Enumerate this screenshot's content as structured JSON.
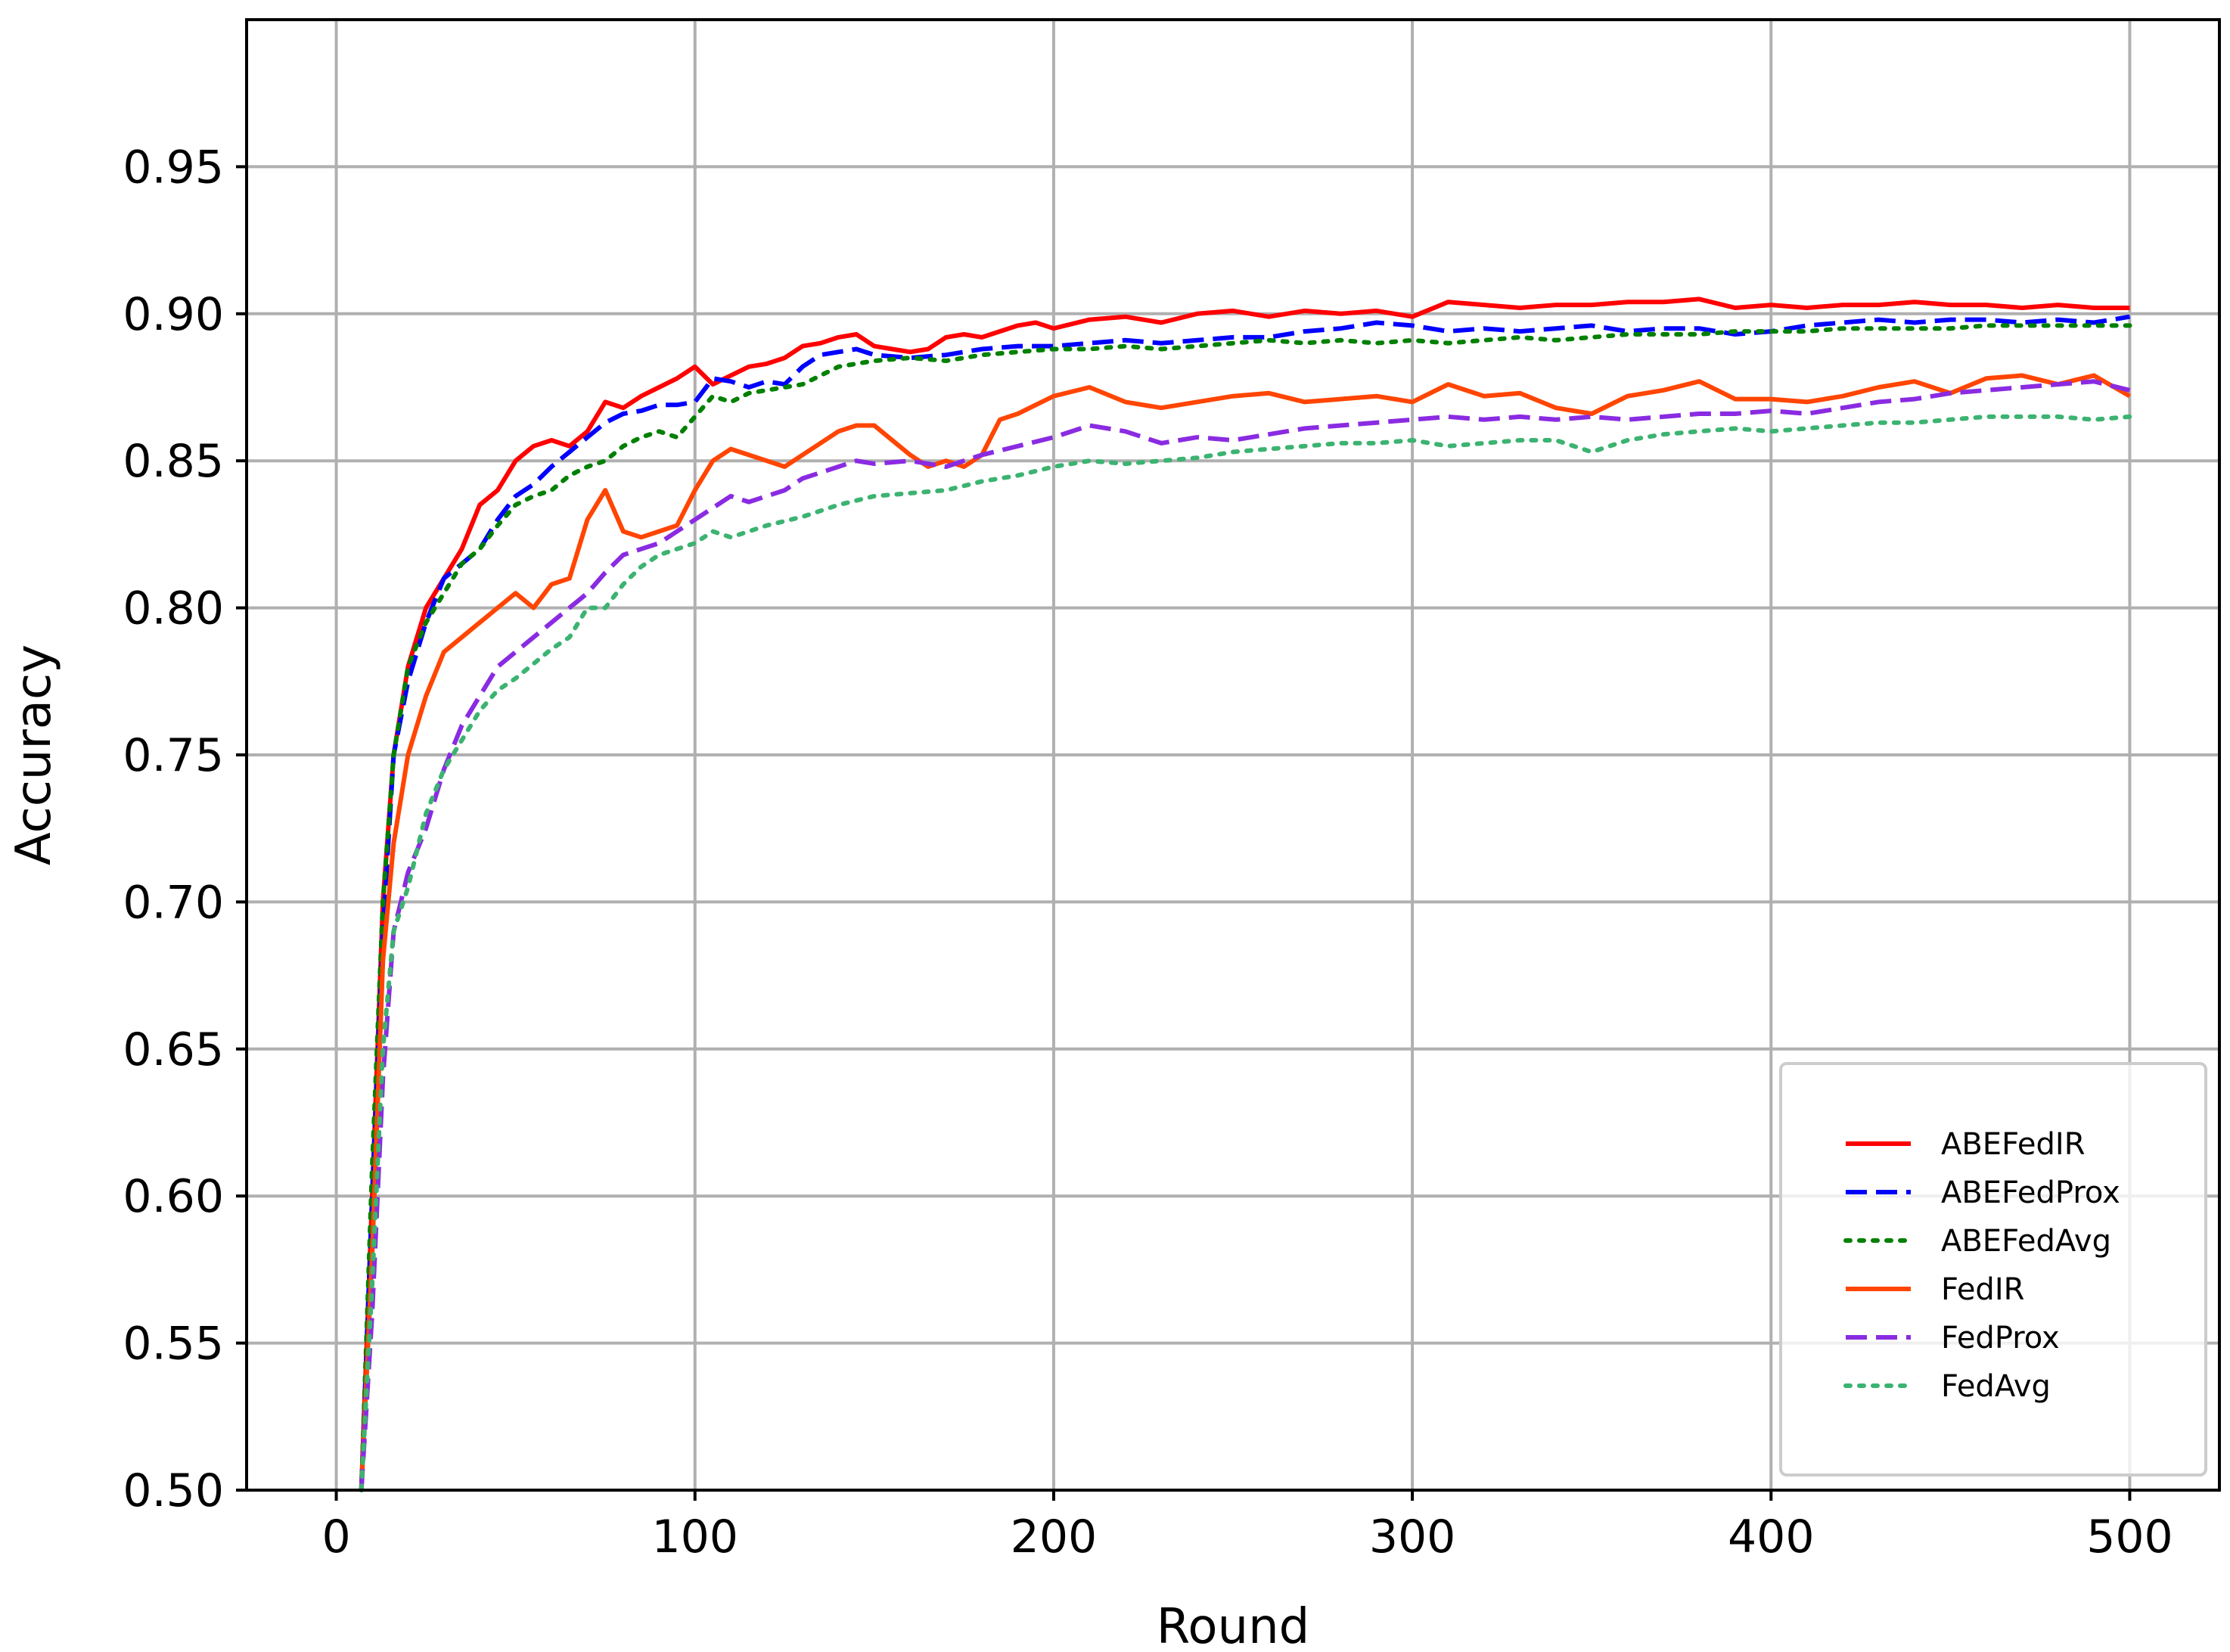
{
  "chart_data": {
    "type": "line",
    "xlabel": "Round",
    "ylabel": "Accuracy",
    "xlim": [
      -25,
      525
    ],
    "ylim": [
      0.5,
      1.0
    ],
    "xticks": [
      0,
      100,
      200,
      300,
      400,
      500
    ],
    "yticks": [
      0.5,
      0.55,
      0.6,
      0.65,
      0.7,
      0.75,
      0.8,
      0.85,
      0.9,
      0.95
    ],
    "grid": true,
    "legend_position": "lower right",
    "series": [
      {
        "name": "ABEFedIR",
        "color": "#ff0000",
        "style": "solid",
        "x": [
          7,
          10,
          13,
          16,
          20,
          25,
          30,
          35,
          40,
          45,
          50,
          55,
          60,
          65,
          70,
          75,
          80,
          85,
          90,
          95,
          100,
          105,
          110,
          115,
          120,
          125,
          130,
          135,
          140,
          145,
          150,
          155,
          160,
          165,
          170,
          175,
          180,
          185,
          190,
          195,
          200,
          210,
          220,
          230,
          240,
          250,
          260,
          270,
          280,
          290,
          300,
          310,
          320,
          330,
          340,
          350,
          360,
          370,
          380,
          390,
          400,
          410,
          420,
          430,
          440,
          450,
          460,
          470,
          480,
          490,
          500
        ],
        "y": [
          0.5,
          0.6,
          0.7,
          0.75,
          0.78,
          0.8,
          0.81,
          0.82,
          0.835,
          0.84,
          0.85,
          0.855,
          0.857,
          0.855,
          0.86,
          0.87,
          0.868,
          0.872,
          0.875,
          0.878,
          0.882,
          0.876,
          0.879,
          0.882,
          0.883,
          0.885,
          0.889,
          0.89,
          0.892,
          0.893,
          0.889,
          0.888,
          0.887,
          0.888,
          0.892,
          0.893,
          0.892,
          0.894,
          0.896,
          0.897,
          0.895,
          0.898,
          0.899,
          0.897,
          0.9,
          0.901,
          0.899,
          0.901,
          0.9,
          0.901,
          0.899,
          0.904,
          0.903,
          0.902,
          0.903,
          0.903,
          0.904,
          0.904,
          0.905,
          0.902,
          0.903,
          0.902,
          0.903,
          0.903,
          0.904,
          0.903,
          0.903,
          0.902,
          0.903,
          0.902,
          0.902
        ]
      },
      {
        "name": "ABEFedProx",
        "color": "#0000ff",
        "style": "dashed",
        "x": [
          7,
          10,
          13,
          16,
          20,
          25,
          30,
          35,
          40,
          45,
          50,
          55,
          60,
          65,
          70,
          75,
          80,
          85,
          90,
          95,
          100,
          105,
          110,
          115,
          120,
          125,
          130,
          135,
          140,
          145,
          150,
          160,
          170,
          180,
          190,
          200,
          210,
          220,
          230,
          240,
          250,
          260,
          270,
          280,
          290,
          300,
          310,
          320,
          330,
          340,
          350,
          360,
          370,
          380,
          390,
          400,
          410,
          420,
          430,
          440,
          450,
          460,
          470,
          480,
          490,
          500
        ],
        "y": [
          0.5,
          0.6,
          0.69,
          0.75,
          0.775,
          0.795,
          0.81,
          0.815,
          0.82,
          0.83,
          0.838,
          0.842,
          0.848,
          0.853,
          0.858,
          0.863,
          0.866,
          0.867,
          0.869,
          0.869,
          0.87,
          0.878,
          0.877,
          0.875,
          0.877,
          0.876,
          0.882,
          0.886,
          0.887,
          0.888,
          0.886,
          0.885,
          0.886,
          0.888,
          0.889,
          0.889,
          0.89,
          0.891,
          0.89,
          0.891,
          0.892,
          0.892,
          0.894,
          0.895,
          0.897,
          0.896,
          0.894,
          0.895,
          0.894,
          0.895,
          0.896,
          0.894,
          0.895,
          0.895,
          0.893,
          0.894,
          0.896,
          0.897,
          0.898,
          0.897,
          0.898,
          0.898,
          0.897,
          0.898,
          0.897,
          0.899
        ]
      },
      {
        "name": "ABEFedAvg",
        "color": "#008000",
        "style": "dotted",
        "x": [
          7,
          10,
          13,
          16,
          20,
          25,
          30,
          35,
          40,
          45,
          50,
          55,
          60,
          65,
          70,
          75,
          80,
          85,
          90,
          95,
          100,
          105,
          110,
          115,
          120,
          130,
          140,
          150,
          160,
          170,
          180,
          190,
          200,
          210,
          220,
          230,
          240,
          250,
          260,
          270,
          280,
          290,
          300,
          310,
          320,
          330,
          340,
          350,
          360,
          370,
          380,
          390,
          400,
          410,
          420,
          430,
          440,
          450,
          460,
          470,
          480,
          490,
          500
        ],
        "y": [
          0.5,
          0.61,
          0.7,
          0.75,
          0.78,
          0.795,
          0.805,
          0.815,
          0.82,
          0.828,
          0.835,
          0.838,
          0.84,
          0.845,
          0.848,
          0.85,
          0.855,
          0.858,
          0.86,
          0.858,
          0.865,
          0.872,
          0.87,
          0.873,
          0.874,
          0.876,
          0.882,
          0.884,
          0.885,
          0.884,
          0.886,
          0.887,
          0.888,
          0.888,
          0.889,
          0.888,
          0.889,
          0.89,
          0.891,
          0.89,
          0.891,
          0.89,
          0.891,
          0.89,
          0.891,
          0.892,
          0.891,
          0.892,
          0.893,
          0.893,
          0.893,
          0.894,
          0.894,
          0.894,
          0.895,
          0.895,
          0.895,
          0.895,
          0.896,
          0.896,
          0.896,
          0.896,
          0.896
        ]
      },
      {
        "name": "FedIR",
        "color": "#ff4500",
        "style": "solid",
        "x": [
          7,
          10,
          13,
          16,
          20,
          25,
          30,
          35,
          40,
          45,
          50,
          55,
          60,
          65,
          70,
          75,
          80,
          85,
          90,
          95,
          100,
          105,
          110,
          115,
          120,
          125,
          130,
          135,
          140,
          145,
          150,
          155,
          160,
          165,
          170,
          175,
          180,
          185,
          190,
          200,
          210,
          220,
          230,
          240,
          250,
          260,
          270,
          280,
          290,
          300,
          310,
          320,
          330,
          340,
          350,
          360,
          370,
          380,
          390,
          400,
          410,
          420,
          430,
          440,
          450,
          460,
          470,
          480,
          490,
          500
        ],
        "y": [
          0.5,
          0.58,
          0.68,
          0.72,
          0.75,
          0.77,
          0.785,
          0.79,
          0.795,
          0.8,
          0.805,
          0.8,
          0.808,
          0.81,
          0.83,
          0.84,
          0.826,
          0.824,
          0.826,
          0.828,
          0.84,
          0.85,
          0.854,
          0.852,
          0.85,
          0.848,
          0.852,
          0.856,
          0.86,
          0.862,
          0.862,
          0.857,
          0.852,
          0.848,
          0.85,
          0.848,
          0.852,
          0.864,
          0.866,
          0.872,
          0.875,
          0.87,
          0.868,
          0.87,
          0.872,
          0.873,
          0.87,
          0.871,
          0.872,
          0.87,
          0.876,
          0.872,
          0.873,
          0.868,
          0.866,
          0.872,
          0.874,
          0.877,
          0.871,
          0.871,
          0.87,
          0.872,
          0.875,
          0.877,
          0.873,
          0.878,
          0.879,
          0.876,
          0.879,
          0.872
        ]
      },
      {
        "name": "FedProx",
        "color": "#8a2be2",
        "style": "dashed",
        "x": [
          7,
          10,
          13,
          16,
          20,
          25,
          30,
          35,
          40,
          45,
          50,
          55,
          60,
          65,
          70,
          75,
          80,
          85,
          90,
          95,
          100,
          105,
          110,
          115,
          120,
          125,
          130,
          135,
          140,
          145,
          150,
          160,
          170,
          180,
          190,
          200,
          210,
          220,
          230,
          240,
          250,
          260,
          270,
          280,
          290,
          300,
          310,
          320,
          330,
          340,
          350,
          360,
          370,
          380,
          390,
          400,
          410,
          420,
          430,
          440,
          450,
          460,
          470,
          480,
          490,
          500
        ],
        "y": [
          0.5,
          0.56,
          0.64,
          0.69,
          0.71,
          0.725,
          0.745,
          0.76,
          0.77,
          0.78,
          0.785,
          0.79,
          0.795,
          0.8,
          0.805,
          0.812,
          0.818,
          0.82,
          0.822,
          0.826,
          0.83,
          0.834,
          0.838,
          0.836,
          0.838,
          0.84,
          0.844,
          0.846,
          0.848,
          0.85,
          0.849,
          0.85,
          0.848,
          0.852,
          0.855,
          0.858,
          0.862,
          0.86,
          0.856,
          0.858,
          0.857,
          0.859,
          0.861,
          0.862,
          0.863,
          0.864,
          0.865,
          0.864,
          0.865,
          0.864,
          0.865,
          0.864,
          0.865,
          0.866,
          0.866,
          0.867,
          0.866,
          0.868,
          0.87,
          0.871,
          0.873,
          0.874,
          0.875,
          0.876,
          0.877,
          0.874
        ]
      },
      {
        "name": "FedAvg",
        "color": "#3cb371",
        "style": "dotted",
        "x": [
          7,
          10,
          13,
          16,
          20,
          25,
          30,
          35,
          40,
          45,
          50,
          55,
          60,
          65,
          70,
          75,
          80,
          85,
          90,
          95,
          100,
          105,
          110,
          115,
          120,
          130,
          140,
          150,
          160,
          170,
          180,
          190,
          200,
          210,
          220,
          230,
          240,
          250,
          260,
          270,
          280,
          290,
          300,
          310,
          320,
          330,
          340,
          350,
          360,
          370,
          380,
          390,
          400,
          410,
          420,
          430,
          440,
          450,
          460,
          470,
          480,
          490,
          500
        ],
        "y": [
          0.5,
          0.57,
          0.65,
          0.69,
          0.705,
          0.73,
          0.745,
          0.755,
          0.765,
          0.772,
          0.776,
          0.781,
          0.786,
          0.79,
          0.8,
          0.8,
          0.808,
          0.814,
          0.818,
          0.82,
          0.822,
          0.826,
          0.824,
          0.826,
          0.828,
          0.831,
          0.835,
          0.838,
          0.839,
          0.84,
          0.843,
          0.845,
          0.848,
          0.85,
          0.849,
          0.85,
          0.851,
          0.853,
          0.854,
          0.855,
          0.856,
          0.856,
          0.857,
          0.855,
          0.856,
          0.857,
          0.857,
          0.853,
          0.857,
          0.859,
          0.86,
          0.861,
          0.86,
          0.861,
          0.862,
          0.863,
          0.863,
          0.864,
          0.865,
          0.865,
          0.865,
          0.864,
          0.865
        ]
      }
    ]
  }
}
